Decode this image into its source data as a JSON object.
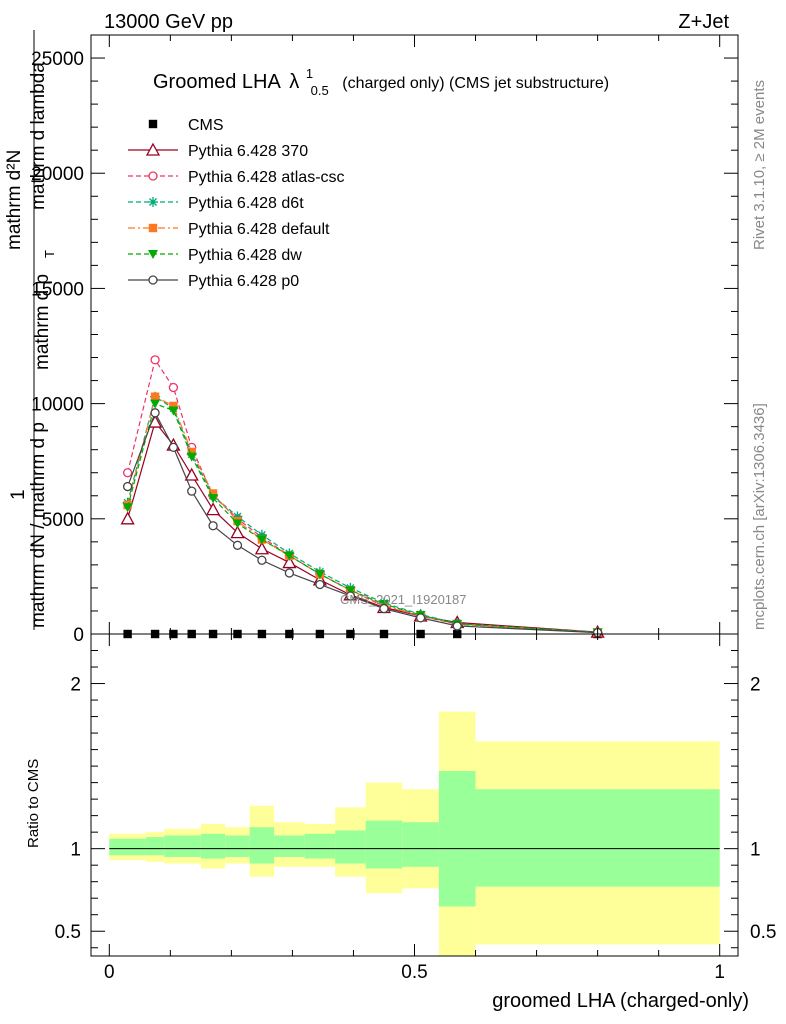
{
  "header": {
    "left": "13000 GeV pp",
    "right": "Z+Jet"
  },
  "side_labels": {
    "rivet": "Rivet 3.1.10, ≥ 2M events",
    "mcplots": "mcplots.cern.ch [arXiv:1306.3436]"
  },
  "chart_data": {
    "type": "line",
    "title_main": "Groomed LHA",
    "title_lambda": "λ",
    "title_sup": "1",
    "title_sub": "0.5",
    "title_rest": "(charged only) (CMS jet substructure)",
    "analysis_label": "CMS_2021_I1920187",
    "xlabel": "groomed LHA (charged-only)",
    "ylabel_main_top": "1",
    "ylabel_main_line1": "mathrm d",
    "ylabel_main_line2": "mathrm d²N",
    "ylabel_main_line3": "mathrm dN / mathrm d p",
    "ylabel_main_line4": "mathrm d p",
    "ylabel_main_line5": "mathrm d lambda",
    "ylabel_main_sub": "T",
    "ylabel_ratio": "Ratio to CMS",
    "xlim": [
      -0.03,
      1.03
    ],
    "main_ylim": [
      0,
      26000
    ],
    "ratio_ylim": [
      0.35,
      2.3
    ],
    "x_ticks": [
      0,
      0.5,
      1
    ],
    "x_tick_labels": [
      "0",
      "0.5",
      "1"
    ],
    "main_y_ticks": [
      0,
      5000,
      10000,
      15000,
      20000,
      25000
    ],
    "main_y_tick_labels": [
      "0",
      "5000",
      "10000",
      "15000",
      "20000",
      "25000"
    ],
    "ratio_y_ticks": [
      0.5,
      1,
      2
    ],
    "ratio_y_tick_labels": [
      "0.5",
      "1",
      "2"
    ],
    "bin_edges": [
      0,
      0.06,
      0.09,
      0.12,
      0.15,
      0.19,
      0.23,
      0.27,
      0.32,
      0.37,
      0.42,
      0.48,
      0.54,
      0.6,
      1.0
    ],
    "data_x": [
      0.03,
      0.075,
      0.105,
      0.135,
      0.17,
      0.21,
      0.25,
      0.295,
      0.345,
      0.395,
      0.45,
      0.51,
      0.57,
      0.8
    ],
    "cms_values": [
      0,
      0,
      0,
      0,
      0,
      0,
      0,
      0,
      0,
      0,
      0,
      0,
      0,
      0
    ],
    "series": [
      {
        "name": "CMS",
        "color": "#000000",
        "marker": "square",
        "dash": "none",
        "values": [
          0,
          0,
          0,
          0,
          0,
          0,
          0,
          0,
          0,
          0,
          0,
          0,
          0,
          0
        ]
      },
      {
        "name": "Pythia 6.428 370",
        "color": "#990022",
        "marker": "triangle-open",
        "dash": "solid",
        "values": [
          5000,
          9200,
          8200,
          6900,
          5400,
          4400,
          3700,
          3100,
          2350,
          1700,
          1150,
          780,
          500,
          80
        ]
      },
      {
        "name": "Pythia 6.428 atlas-csc",
        "color": "#ee3366",
        "marker": "circle-open",
        "dash": "dashed",
        "values": [
          7000,
          11900,
          10700,
          8100,
          6000,
          5000,
          4200,
          3400,
          2600,
          1900,
          1200,
          780,
          420,
          70
        ]
      },
      {
        "name": "Pythia 6.428 d6t",
        "color": "#00aa77",
        "marker": "asterisk",
        "dash": "dashed",
        "values": [
          5700,
          10300,
          9800,
          7800,
          6000,
          5100,
          4300,
          3500,
          2700,
          2000,
          1350,
          850,
          450,
          70
        ]
      },
      {
        "name": "Pythia 6.428 default",
        "color": "#ff7722",
        "marker": "square",
        "dash": "dashdot",
        "values": [
          5600,
          10300,
          9900,
          7900,
          6100,
          4900,
          4100,
          3400,
          2600,
          1900,
          1250,
          800,
          430,
          70
        ]
      },
      {
        "name": "Pythia 6.428 dw",
        "color": "#00aa00",
        "marker": "triangle-down",
        "dash": "dashed",
        "values": [
          5500,
          10000,
          9700,
          7700,
          5900,
          4800,
          4100,
          3400,
          2600,
          1900,
          1300,
          820,
          440,
          70
        ]
      },
      {
        "name": "Pythia 6.428 p0",
        "color": "#444444",
        "marker": "circle-open",
        "dash": "solid",
        "values": [
          6400,
          9600,
          8100,
          6200,
          4700,
          3850,
          3200,
          2650,
          2150,
          1650,
          1100,
          700,
          350,
          60
        ]
      }
    ],
    "ratio_band_green": [
      [
        0.96,
        1.06
      ],
      [
        0.96,
        1.07
      ],
      [
        0.95,
        1.08
      ],
      [
        0.95,
        1.08
      ],
      [
        0.94,
        1.09
      ],
      [
        0.95,
        1.08
      ],
      [
        0.91,
        1.13
      ],
      [
        0.95,
        1.08
      ],
      [
        0.94,
        1.09
      ],
      [
        0.91,
        1.11
      ],
      [
        0.88,
        1.17
      ],
      [
        0.89,
        1.16
      ],
      [
        0.65,
        1.47
      ],
      [
        0.77,
        1.36
      ]
    ],
    "ratio_band_yellow": [
      [
        0.93,
        1.09
      ],
      [
        0.92,
        1.1
      ],
      [
        0.91,
        1.12
      ],
      [
        0.91,
        1.12
      ],
      [
        0.88,
        1.15
      ],
      [
        0.91,
        1.13
      ],
      [
        0.83,
        1.26
      ],
      [
        0.89,
        1.16
      ],
      [
        0.89,
        1.15
      ],
      [
        0.83,
        1.25
      ],
      [
        0.73,
        1.4
      ],
      [
        0.76,
        1.36
      ],
      [
        0.35,
        1.83
      ],
      [
        0.42,
        1.65
      ]
    ],
    "grid": false,
    "legend_placement": "top-left"
  }
}
